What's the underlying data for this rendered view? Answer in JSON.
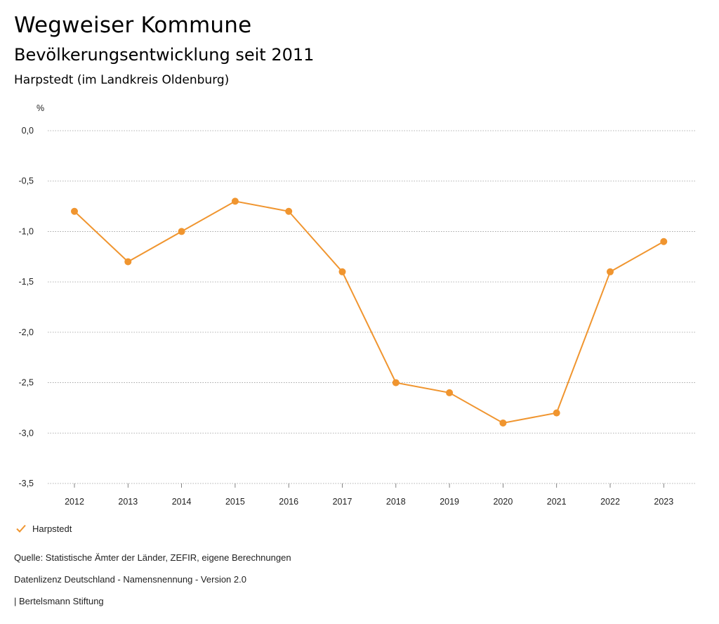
{
  "header": {
    "title": "Wegweiser Kommune",
    "subtitle": "Bevölkerungsentwicklung seit 2011",
    "region": "Harpstedt (im Landkreis Oldenburg)"
  },
  "chart_data": {
    "type": "line",
    "title": "Bevölkerungsentwicklung seit 2011",
    "ylabel": "%",
    "xlabel": "",
    "categories": [
      "2012",
      "2013",
      "2014",
      "2015",
      "2016",
      "2017",
      "2018",
      "2019",
      "2020",
      "2021",
      "2022",
      "2023"
    ],
    "series": [
      {
        "name": "Harpstedt",
        "color": "#f0952f",
        "values": [
          -0.8,
          -1.3,
          -1.0,
          -0.7,
          -0.8,
          -1.4,
          -2.5,
          -2.6,
          -2.9,
          -2.8,
          -1.4,
          -1.1
        ]
      }
    ],
    "ylim": [
      -3.5,
      0.0
    ],
    "yticks": [
      0.0,
      -0.5,
      -1.0,
      -1.5,
      -2.0,
      -2.5,
      -3.0,
      -3.5
    ],
    "ytick_labels": [
      "0,0",
      "-0,5",
      "-1,0",
      "-1,5",
      "-2,0",
      "-2,5",
      "-3,0",
      "-3,5"
    ],
    "grid": true,
    "legend": "bottom-left"
  },
  "legend": {
    "label": "Harpstedt"
  },
  "footer": {
    "source": "Quelle: Statistische Ämter der Länder, ZEFIR, eigene Berechnungen",
    "license": "Datenlizenz Deutschland - Namensnennung - Version 2.0",
    "publisher": "| Bertelsmann Stiftung"
  }
}
